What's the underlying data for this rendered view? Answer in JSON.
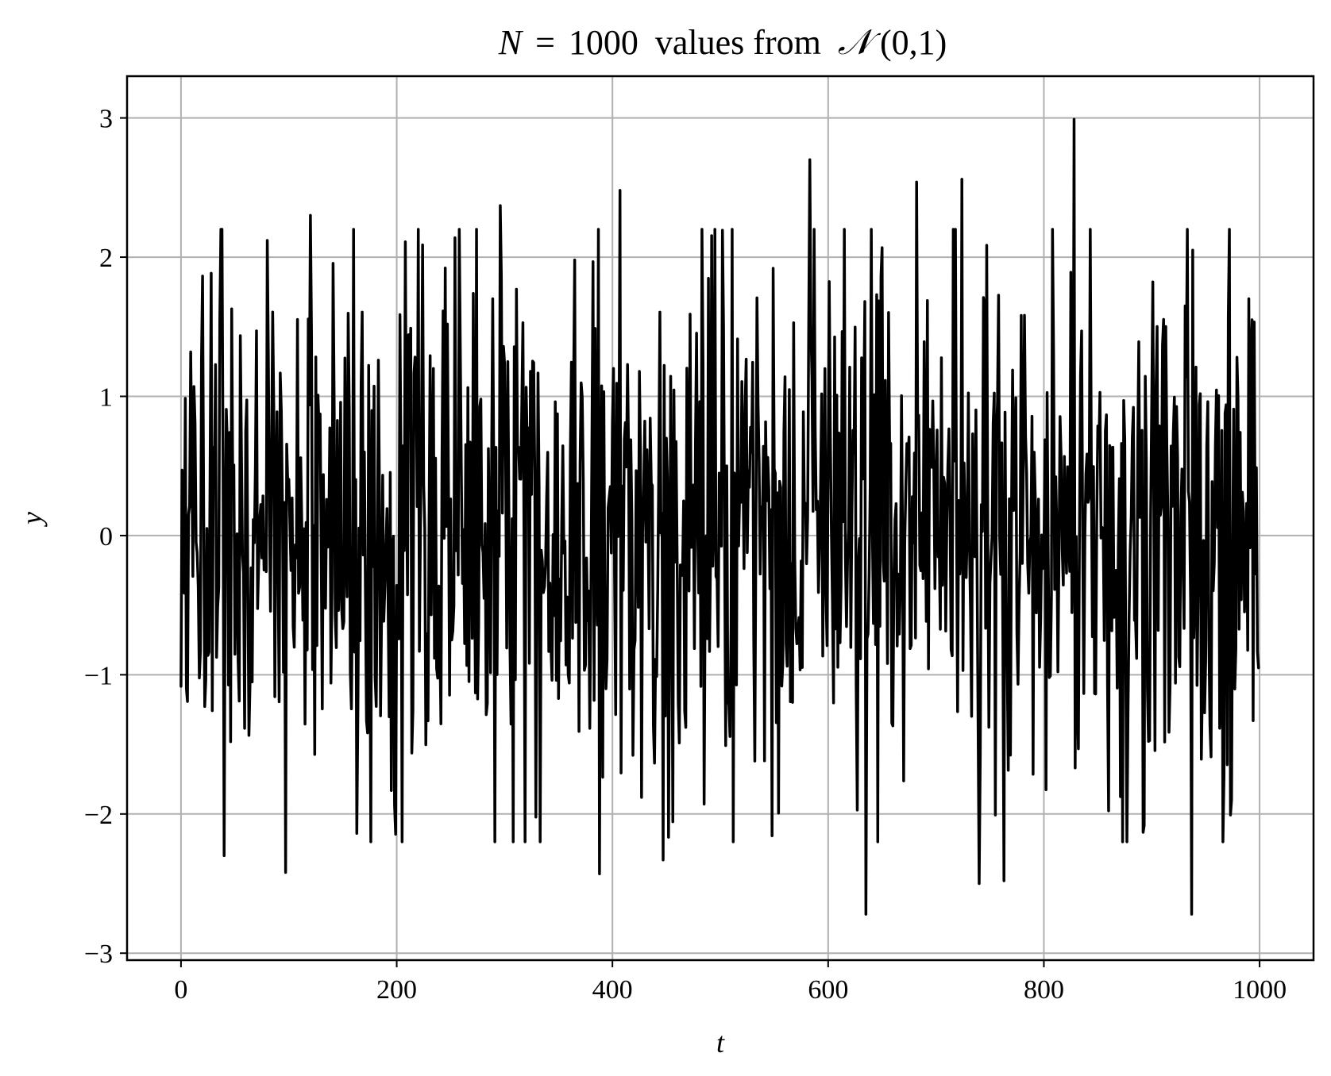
{
  "chart_data": {
    "type": "line",
    "title": "N = 1000 values from 𝒩(0,1)",
    "title_parts": {
      "n_symbol": "N",
      "equals": "=",
      "count": "1000",
      "text": "values from",
      "dist_symbol": "𝒩",
      "params": "(0,1)"
    },
    "xlabel": "t",
    "ylabel": "y",
    "xlim": [
      -50,
      1050
    ],
    "ylim": [
      -3.05,
      3.3
    ],
    "xticks": [
      0,
      200,
      400,
      600,
      800,
      1000
    ],
    "xtick_labels": [
      "0",
      "200",
      "400",
      "600",
      "800",
      "1000"
    ],
    "yticks": [
      -3,
      -2,
      -1,
      0,
      1,
      2,
      3
    ],
    "ytick_labels": [
      "−3",
      "−2",
      "−1",
      "0",
      "1",
      "2",
      "3"
    ],
    "grid": true,
    "legend": "none",
    "line_color": "#000000",
    "grid_color": "#b0b0b0",
    "n_points": 1000,
    "x_start": 0,
    "x_step": 1,
    "sample_extremes": [
      {
        "x": 1,
        "y": 0.47
      },
      {
        "x": 5,
        "y": -1.1
      },
      {
        "x": 40,
        "y": -2.3
      },
      {
        "x": 80,
        "y": 2.12
      },
      {
        "x": 97,
        "y": -2.42
      },
      {
        "x": 120,
        "y": 2.3
      },
      {
        "x": 208,
        "y": 2.11
      },
      {
        "x": 220,
        "y": 2.2
      },
      {
        "x": 296,
        "y": 2.37
      },
      {
        "x": 388,
        "y": -2.43
      },
      {
        "x": 407,
        "y": 2.48
      },
      {
        "x": 447,
        "y": -2.33
      },
      {
        "x": 583,
        "y": 2.7
      },
      {
        "x": 635,
        "y": -2.72
      },
      {
        "x": 682,
        "y": 2.54
      },
      {
        "x": 724,
        "y": 2.56
      },
      {
        "x": 740,
        "y": -2.5
      },
      {
        "x": 763,
        "y": -2.48
      },
      {
        "x": 828,
        "y": 2.99
      },
      {
        "x": 937,
        "y": -2.72
      },
      {
        "x": 938,
        "y": 2.05
      },
      {
        "x": 993,
        "y": 1.55
      },
      {
        "x": 999,
        "y": -0.95
      }
    ]
  }
}
